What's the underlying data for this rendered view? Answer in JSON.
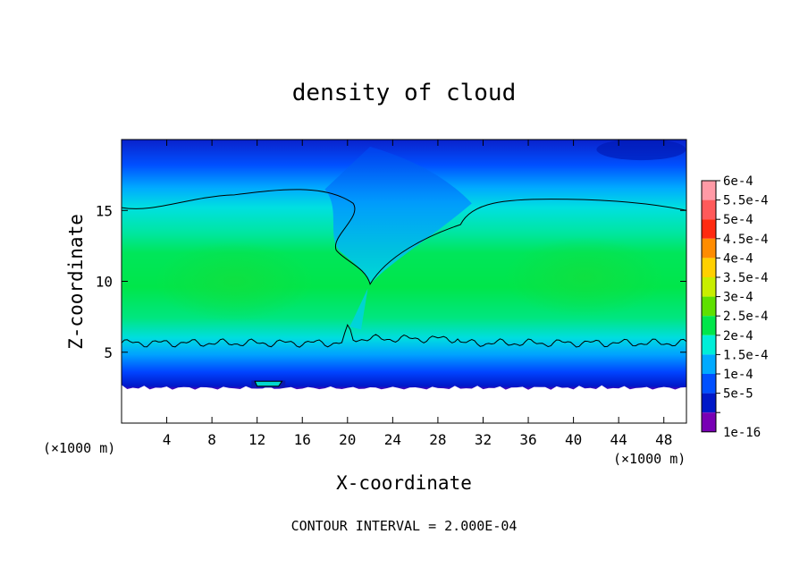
{
  "chart_data": {
    "type": "heatmap",
    "title": "density of cloud",
    "xlabel": "X-coordinate",
    "ylabel": "Z-coordinate",
    "x_unit_label": "(×1000 m)",
    "z_unit_label": "(×1000 m)",
    "xlim": [
      0,
      50
    ],
    "ylim": [
      0,
      20
    ],
    "x_ticks": [
      4,
      8,
      12,
      16,
      20,
      24,
      28,
      32,
      36,
      40,
      44,
      48
    ],
    "y_ticks": [
      5,
      10,
      15
    ],
    "grid": false,
    "footer": "CONTOUR INTERVAL = 2.000E-04",
    "colorbar": {
      "placement": "right",
      "levels": [
        {
          "label": "6e-4",
          "color": "#ff9aa6"
        },
        {
          "label": "5.5e-4",
          "color": "#ff5a5a"
        },
        {
          "label": "5e-4",
          "color": "#ff2a10"
        },
        {
          "label": "4.5e-4",
          "color": "#ff8c00"
        },
        {
          "label": "4e-4",
          "color": "#ffd000"
        },
        {
          "label": "3.5e-4",
          "color": "#c8ee00"
        },
        {
          "label": "3e-4",
          "color": "#5ee000"
        },
        {
          "label": "2.5e-4",
          "color": "#00e64a"
        },
        {
          "label": "2e-4",
          "color": "#00eed8"
        },
        {
          "label": "1.5e-4",
          "color": "#00aaff"
        },
        {
          "label": "1e-4",
          "color": "#0050ff"
        },
        {
          "label": "5e-5",
          "color": "#0018c8"
        },
        {
          "label": "1e-16",
          "color": "#7800b4"
        }
      ]
    },
    "regions": {
      "cloud_base_km": 2.7,
      "lower_contour_km": 6.0,
      "upper_contour_left_km": 15.2,
      "upper_contour_right_km": 15.8,
      "clear_slot_x_km": 22,
      "clear_slot_bottom_km": 9.8
    }
  }
}
